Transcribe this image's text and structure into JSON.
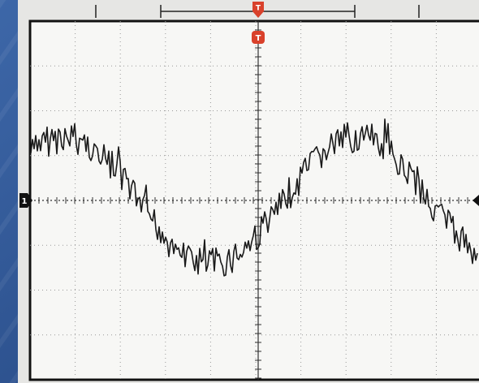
{
  "markers": {
    "trigger_position": "T",
    "trigger_level": "T",
    "channel": "1"
  }
}
